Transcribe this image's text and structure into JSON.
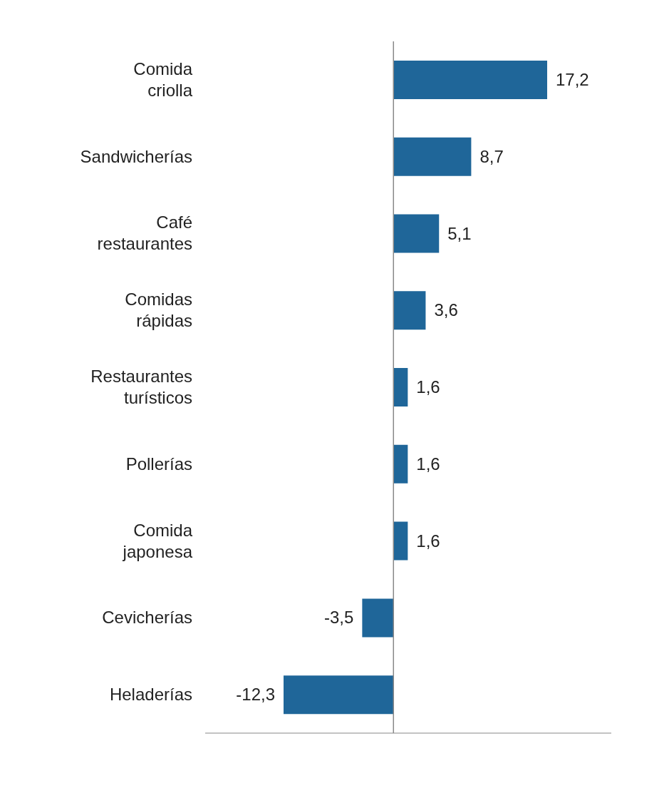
{
  "chart_data": {
    "type": "bar",
    "orientation": "horizontal",
    "categories": [
      "Comida criolla",
      "Sandwicherías",
      "Café restaurantes",
      "Comidas rápidas",
      "Restaurantes turísticos",
      "Pollerías",
      "Comida japonesa",
      "Cevicherías",
      "Heladerías"
    ],
    "values": [
      17.2,
      8.7,
      5.1,
      3.6,
      1.6,
      1.6,
      1.6,
      -3.5,
      -12.3
    ],
    "value_labels": [
      "17,2",
      "8,7",
      "5,1",
      "3,6",
      "1,6",
      "1,6",
      "1,6",
      "-3,5",
      "-12,3"
    ],
    "color": "#1f6699",
    "tick_labels": "y",
    "grid": false,
    "legend": false
  }
}
